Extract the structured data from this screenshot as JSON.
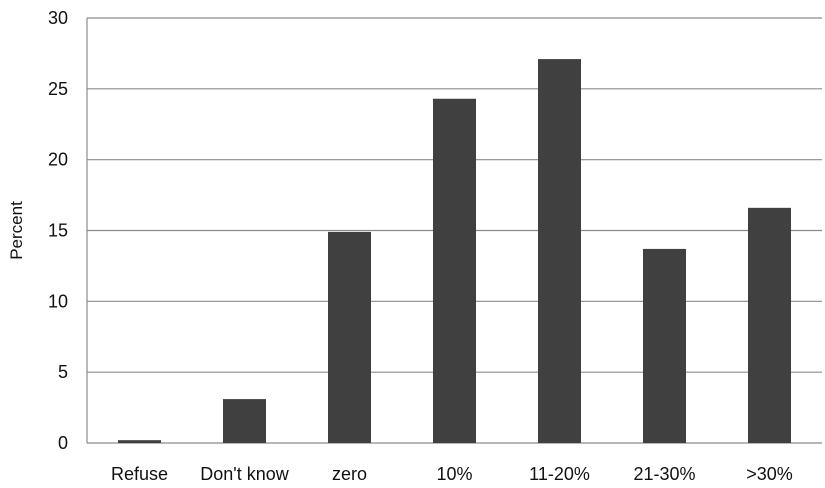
{
  "chart_data": {
    "type": "bar",
    "title": "",
    "xlabel": "",
    "ylabel": "Percent",
    "categories": [
      "Refuse",
      "Don't know",
      "zero",
      "10%",
      "11-20%",
      "21-30%",
      ">30%"
    ],
    "values": [
      0.2,
      3.1,
      14.9,
      24.3,
      27.1,
      13.7,
      16.6
    ],
    "ylim": [
      0,
      30
    ],
    "yticks": [
      "0",
      "5",
      "10",
      "15",
      "20",
      "25",
      "30"
    ],
    "grid": true,
    "legend": "none",
    "colors": {
      "bar": "#404040",
      "grid": "#8c8c8c",
      "text": "#111111"
    }
  }
}
